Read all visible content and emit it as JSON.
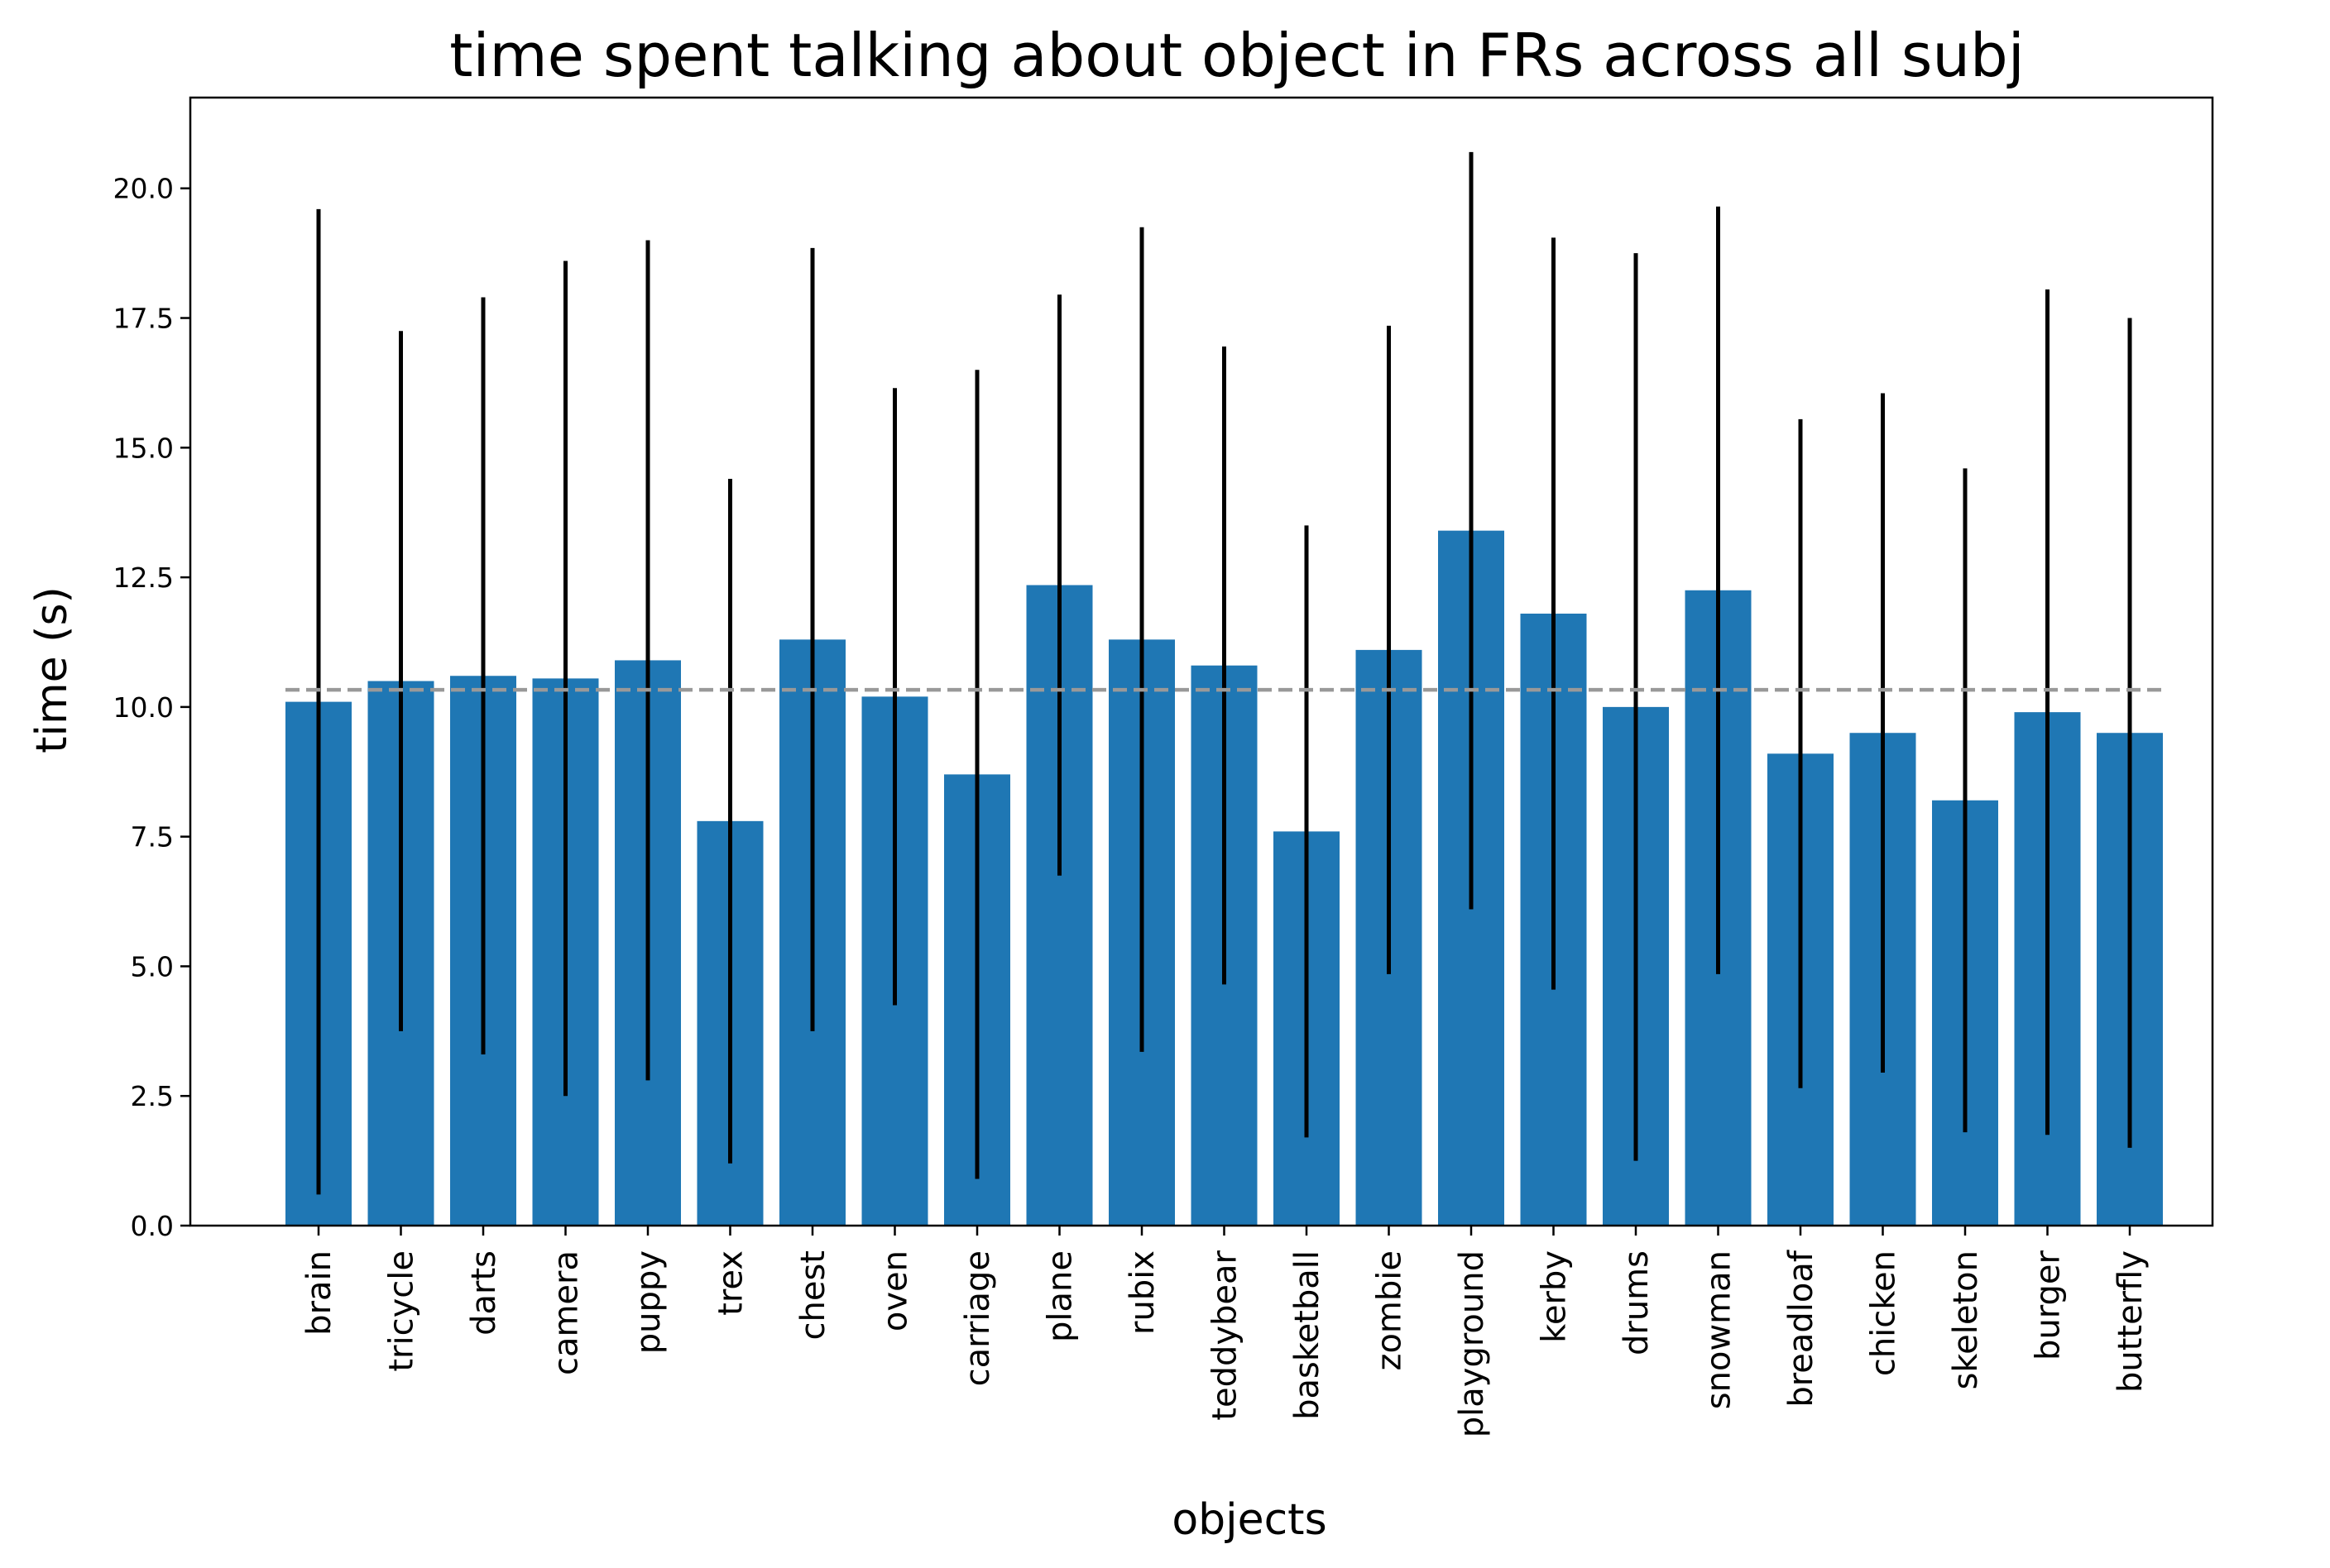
{
  "chart_data": {
    "type": "bar",
    "title": "time spent talking about object in FRs across all subj",
    "xlabel": "objects",
    "ylabel": "time (s)",
    "ylim": [
      0,
      21.75
    ],
    "yticks": [
      0.0,
      2.5,
      5.0,
      7.5,
      10.0,
      12.5,
      15.0,
      17.5,
      20.0
    ],
    "ytick_labels": [
      "0.0",
      "2.5",
      "5.0",
      "7.5",
      "10.0",
      "12.5",
      "15.0",
      "17.5",
      "20.0"
    ],
    "categories": [
      "brain",
      "tricycle",
      "darts",
      "camera",
      "puppy",
      "trex",
      "chest",
      "oven",
      "carriage",
      "plane",
      "rubix",
      "teddybear",
      "basketball",
      "zombie",
      "playground",
      "kerby",
      "drums",
      "snowman",
      "breadloaf",
      "chicken",
      "skeleton",
      "burger",
      "butterfly"
    ],
    "values": [
      10.1,
      10.5,
      10.6,
      10.55,
      10.9,
      7.8,
      11.3,
      10.2,
      8.7,
      12.35,
      11.3,
      10.8,
      7.6,
      11.1,
      13.4,
      11.8,
      10.0,
      12.25,
      9.1,
      9.5,
      8.2,
      9.9,
      9.5
    ],
    "error": [
      9.5,
      6.75,
      7.3,
      8.05,
      8.1,
      6.6,
      7.55,
      5.95,
      7.8,
      5.6,
      7.95,
      6.15,
      5.9,
      6.25,
      7.3,
      7.25,
      8.75,
      7.4,
      6.45,
      6.55,
      6.4,
      8.15,
      8.0
    ],
    "mean_line": 10.33,
    "colors": {
      "bar": "#1f77b4",
      "error_bar": "#000000",
      "mean_line": "#999999",
      "axes": "#000000"
    },
    "grid": false,
    "legend": "none"
  }
}
